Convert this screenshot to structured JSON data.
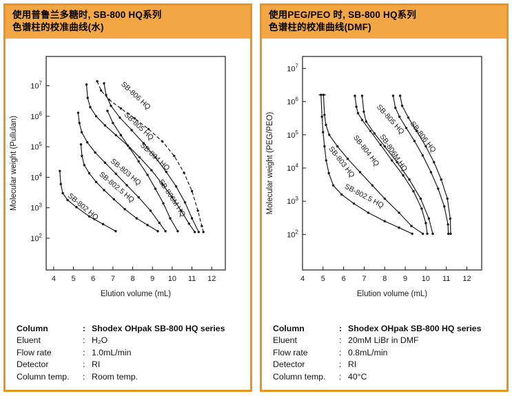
{
  "colors": {
    "header_fill": "#F2A644",
    "panel_border": "#E8941F",
    "ink": "#1A1A1A",
    "background": "#FFFFFF"
  },
  "panels": [
    {
      "id": "pullulan-water",
      "header_line1": "使用普鲁兰多糖时, SB-800 HQ系列",
      "header_line2": "色谱柱的校准曲线(水)",
      "colon": ":",
      "conditions": [
        {
          "label": "Column",
          "value": "Shodex OHpak SB-800 HQ series",
          "bold": true
        },
        {
          "label": "Eluent",
          "value": "H₂O",
          "bold": false
        },
        {
          "label": "Flow rate",
          "value": "1.0mL/min",
          "bold": false
        },
        {
          "label": "Detector",
          "value": "RI",
          "bold": false
        },
        {
          "label": "Column temp.",
          "value": "Room temp.",
          "bold": false
        }
      ]
    },
    {
      "id": "peg-peo-dmf",
      "header_line1": "使用PEG/PEO 时, SB-800 HQ系列",
      "header_line2": "色谱柱的校准曲线(DMF)",
      "colon": ":",
      "conditions": [
        {
          "label": "Column",
          "value": "Shodex OHpak SB-800 HQ series",
          "bold": true
        },
        {
          "label": "Eluent",
          "value": "20mM LiBr in DMF",
          "bold": false
        },
        {
          "label": "Flow rate",
          "value": "0.8mL/min",
          "bold": false
        },
        {
          "label": "Detector",
          "value": "RI",
          "bold": false
        },
        {
          "label": "Column temp.",
          "value": "40°C",
          "bold": false
        }
      ]
    }
  ],
  "chart_data": [
    {
      "type": "line",
      "xlabel": "Elution volume (mL)",
      "ylabel": "Molecular weight (Pullulan)",
      "x_ticks": [
        4,
        5,
        6,
        7,
        8,
        9,
        10,
        11,
        12
      ],
      "y_tick_exponents": [
        2,
        3,
        4,
        5,
        6,
        7
      ],
      "xlim": [
        3.62,
        12.69
      ],
      "ylim_exponents": [
        0.96,
        7.96
      ],
      "grid": false,
      "legend": "labels-on-curves",
      "series": [
        {
          "name": "SB-802 HQ",
          "dashed": false,
          "points": [
            [
              4.31,
              16000
            ],
            [
              4.36,
              6000
            ],
            [
              4.46,
              3000
            ],
            [
              4.7,
              1800
            ],
            [
              5.15,
              1050
            ],
            [
              5.8,
              520
            ],
            [
              6.5,
              290
            ],
            [
              7.14,
              170
            ]
          ],
          "label": {
            "x": 5.42,
            "log_mw": 2.98,
            "angle": 40
          }
        },
        {
          "name": "SB-802.5 HQ",
          "dashed": false,
          "points": [
            [
              5.38,
              120000
            ],
            [
              5.43,
              50000
            ],
            [
              5.55,
              25000
            ],
            [
              5.8,
              13500
            ],
            [
              6.15,
              7000
            ],
            [
              6.55,
              3800
            ],
            [
              7.05,
              1900
            ],
            [
              7.6,
              900
            ],
            [
              8.2,
              450
            ],
            [
              8.75,
              270
            ],
            [
              9.27,
              170
            ]
          ],
          "label": {
            "x": 7.12,
            "log_mw": 3.62,
            "angle": 40
          }
        },
        {
          "name": "SB-803 HQ",
          "dashed": false,
          "points": [
            [
              5.24,
              1300000
            ],
            [
              5.3,
              600000
            ],
            [
              5.42,
              300000
            ],
            [
              5.7,
              140000
            ],
            [
              6.1,
              65000
            ],
            [
              6.6,
              30000
            ],
            [
              7.15,
              13000
            ],
            [
              7.7,
              5500
            ],
            [
              8.3,
              2200
            ],
            [
              8.9,
              800
            ],
            [
              9.35,
              320
            ],
            [
              9.66,
              170
            ]
          ],
          "label": {
            "x": 7.58,
            "log_mw": 4.12,
            "angle": 40
          }
        },
        {
          "name": "SB-804 HQ",
          "dashed": false,
          "points": [
            [
              5.66,
              11000000
            ],
            [
              5.72,
              4000000
            ],
            [
              5.85,
              2000000
            ],
            [
              6.15,
              1000000
            ],
            [
              6.6,
              500000
            ],
            [
              7.15,
              240000
            ],
            [
              7.75,
              110000
            ],
            [
              8.35,
              45000
            ],
            [
              8.95,
              17000
            ],
            [
              9.5,
              6000
            ],
            [
              10.0,
              2200
            ],
            [
              10.45,
              800
            ],
            [
              10.85,
              300
            ],
            [
              11.14,
              160
            ]
          ],
          "label": {
            "x": 9.05,
            "log_mw": 4.62,
            "angle": 43
          }
        },
        {
          "name": "SB-805 HQ",
          "dashed": false,
          "points": [
            [
              6.55,
              12000000
            ],
            [
              6.65,
              5000000
            ],
            [
              6.9,
              2200000
            ],
            [
              7.35,
              900000
            ],
            [
              7.95,
              350000
            ],
            [
              8.55,
              130000
            ],
            [
              9.15,
              45000
            ],
            [
              9.7,
              15000
            ],
            [
              10.2,
              5000
            ],
            [
              10.65,
              1500
            ],
            [
              11.0,
              450
            ],
            [
              11.34,
              160
            ]
          ],
          "label": {
            "x": 8.24,
            "log_mw": 5.62,
            "angle": 43
          }
        },
        {
          "name": "SB-806 HQ",
          "dashed": true,
          "points": [
            [
              6.2,
              14000000
            ],
            [
              6.4,
              7000000
            ],
            [
              6.8,
              3500000
            ],
            [
              7.4,
              1800000
            ],
            [
              8.1,
              850000
            ],
            [
              8.8,
              380000
            ],
            [
              9.5,
              150000
            ],
            [
              10.1,
              50000
            ],
            [
              10.6,
              14000
            ],
            [
              11.0,
              3500
            ],
            [
              11.3,
              800
            ],
            [
              11.5,
              250
            ],
            [
              11.58,
              160
            ]
          ],
          "label": {
            "x": 8.08,
            "log_mw": 6.62,
            "angle": 43
          }
        },
        {
          "name": "SB-806M HQ",
          "dashed": false,
          "points": [
            [
              6.72,
              1500000
            ],
            [
              7.0,
              600000
            ],
            [
              7.4,
              240000
            ],
            [
              7.85,
              90000
            ],
            [
              8.3,
              33000
            ],
            [
              8.75,
              12000
            ],
            [
              9.15,
              4200
            ],
            [
              9.55,
              1400
            ],
            [
              9.9,
              450
            ],
            [
              10.28,
              170
            ]
          ],
          "label": {
            "x": 9.9,
            "log_mw": 3.28,
            "angle": 57
          }
        }
      ]
    },
    {
      "type": "line",
      "xlabel": "Elution volume (mL)",
      "ylabel": "Molecular weight (PEG/PEO)",
      "x_ticks": [
        4,
        5,
        6,
        7,
        8,
        9,
        10,
        11,
        12
      ],
      "y_tick_exponents": [
        2,
        3,
        4,
        5,
        6,
        7
      ],
      "xlim": [
        4.0,
        12.72
      ],
      "ylim_exponents": [
        0.93,
        7.36
      ],
      "grid": false,
      "legend": "labels-on-curves",
      "series": [
        {
          "name": "SB-802.5 HQ",
          "dashed": false,
          "cap_top": true,
          "points": [
            [
              4.9,
              1600000
            ],
            [
              4.95,
              350000
            ],
            [
              5.0,
              120000
            ],
            [
              5.07,
              45000
            ],
            [
              5.15,
              17000
            ],
            [
              5.28,
              7000
            ],
            [
              5.5,
              3000
            ],
            [
              5.9,
              1600
            ],
            [
              6.5,
              850
            ],
            [
              7.2,
              450
            ],
            [
              8.0,
              250
            ],
            [
              8.7,
              160
            ],
            [
              9.34,
              105
            ]
          ],
          "label": {
            "x": 6.95,
            "log_mw": 3.1,
            "angle": 28
          }
        },
        {
          "name": "SB-803 HQ",
          "dashed": false,
          "cap_top": true,
          "points": [
            [
              5.02,
              1600000
            ],
            [
              5.07,
              400000
            ],
            [
              5.14,
              200000
            ],
            [
              5.3,
              100000
            ],
            [
              5.7,
              45000
            ],
            [
              6.2,
              19000
            ],
            [
              6.8,
              7500
            ],
            [
              7.4,
              3000
            ],
            [
              8.0,
              1200
            ],
            [
              8.7,
              450
            ],
            [
              9.3,
              180
            ],
            [
              9.86,
              105
            ]
          ],
          "label": {
            "x": 5.82,
            "log_mw": 4.14,
            "angle": 52
          }
        },
        {
          "name": "SB-804 HQ",
          "dashed": false,
          "cap_top": false,
          "points": [
            [
              6.55,
              1500000
            ],
            [
              6.62,
              700000
            ],
            [
              6.7,
              450000
            ],
            [
              6.9,
              280000
            ],
            [
              7.3,
              130000
            ],
            [
              7.8,
              50000
            ],
            [
              8.35,
              17000
            ],
            [
              8.9,
              6000
            ],
            [
              9.4,
              2000
            ],
            [
              9.8,
              600
            ],
            [
              10.0,
              220
            ],
            [
              10.07,
              105
            ]
          ],
          "label": {
            "x": 7.02,
            "log_mw": 4.48,
            "angle": 52
          }
        },
        {
          "name": "SB-806M HQ",
          "dashed": false,
          "cap_top": false,
          "points": [
            [
              6.9,
              1500000
            ],
            [
              6.98,
              500000
            ],
            [
              7.1,
              250000
            ],
            [
              7.5,
              110000
            ],
            [
              8.0,
              45000
            ],
            [
              8.6,
              15000
            ],
            [
              9.2,
              4500
            ],
            [
              9.75,
              1200
            ],
            [
              10.15,
              300
            ],
            [
              10.34,
              105
            ]
          ],
          "label": {
            "x": 8.34,
            "log_mw": 4.42,
            "angle": 56
          }
        },
        {
          "name": "SB-805 HQ",
          "dashed": false,
          "cap_top": false,
          "points": [
            [
              8.41,
              1500000
            ],
            [
              8.52,
              650000
            ],
            [
              8.72,
              350000
            ],
            [
              9.05,
              160000
            ],
            [
              9.45,
              65000
            ],
            [
              9.85,
              24000
            ],
            [
              10.25,
              7500
            ],
            [
              10.6,
              2400
            ],
            [
              10.9,
              700
            ],
            [
              11.08,
              200
            ],
            [
              11.1,
              105
            ]
          ],
          "label": {
            "x": 8.2,
            "log_mw": 5.42,
            "angle": 48
          }
        },
        {
          "name": "SB-806 HQ",
          "dashed": false,
          "cap_top": false,
          "points": [
            [
              8.75,
              1500000
            ],
            [
              8.85,
              750000
            ],
            [
              9.15,
              330000
            ],
            [
              9.55,
              130000
            ],
            [
              10.0,
              45000
            ],
            [
              10.4,
              15000
            ],
            [
              10.75,
              4500
            ],
            [
              11.05,
              1200
            ],
            [
              11.19,
              300
            ],
            [
              11.21,
              105
            ]
          ],
          "label": {
            "x": 9.78,
            "log_mw": 4.9,
            "angle": 52
          }
        }
      ]
    }
  ]
}
